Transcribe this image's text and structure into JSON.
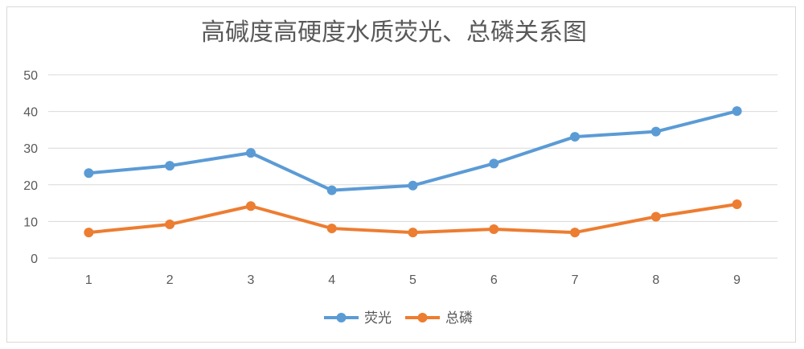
{
  "chart_data": {
    "type": "line",
    "title": "高碱度高硬度水质荧光、总磷关系图",
    "xlabel": "",
    "ylabel": "",
    "categories": [
      "1",
      "2",
      "3",
      "4",
      "5",
      "6",
      "7",
      "8",
      "9"
    ],
    "ylim": [
      0,
      50
    ],
    "yticks": [
      0,
      10,
      20,
      30,
      40,
      50
    ],
    "grid": true,
    "legend_position": "bottom",
    "series": [
      {
        "name": "荧光",
        "color": "#5b9bd5",
        "values": [
          23.2,
          25.2,
          28.7,
          18.5,
          19.8,
          25.8,
          33.1,
          34.5,
          40.1
        ]
      },
      {
        "name": "总磷",
        "color": "#ed7d31",
        "values": [
          7.0,
          9.2,
          14.2,
          8.1,
          7.0,
          7.9,
          7.0,
          11.3,
          14.7
        ]
      }
    ]
  }
}
